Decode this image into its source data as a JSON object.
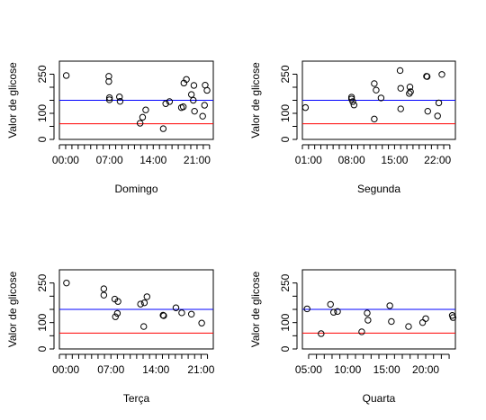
{
  "chart_data": [
    {
      "type": "scatter",
      "xlabel": "Domingo",
      "ylabel": "Valor de glicose",
      "xlim": [
        -1,
        23.6
      ],
      "ylim": [
        0,
        300
      ],
      "xticks": [
        0,
        7,
        14,
        21
      ],
      "xtick_labels": [
        "00:00",
        "07:00",
        "14:00",
        "21:00"
      ],
      "yticks": [
        0,
        100,
        250
      ],
      "ytick_labels": [
        "0",
        "100",
        "250"
      ],
      "hlines": [
        {
          "y": 150,
          "color": "#0000ff"
        },
        {
          "y": 60,
          "color": "#ff0000"
        }
      ],
      "points": [
        [
          0.1,
          245
        ],
        [
          6.9,
          242
        ],
        [
          6.9,
          222
        ],
        [
          7.0,
          160
        ],
        [
          7.0,
          152
        ],
        [
          8.6,
          163
        ],
        [
          8.7,
          146
        ],
        [
          11.9,
          62
        ],
        [
          12.3,
          85
        ],
        [
          12.8,
          113
        ],
        [
          15.6,
          41
        ],
        [
          16.0,
          137
        ],
        [
          16.6,
          145
        ],
        [
          18.5,
          122
        ],
        [
          18.8,
          125
        ],
        [
          18.9,
          216
        ],
        [
          19.3,
          230
        ],
        [
          20.1,
          172
        ],
        [
          20.4,
          150
        ],
        [
          20.5,
          207
        ],
        [
          20.6,
          108
        ],
        [
          21.9,
          89
        ],
        [
          22.2,
          131
        ],
        [
          22.3,
          208
        ],
        [
          22.6,
          188
        ]
      ]
    },
    {
      "type": "scatter",
      "xlabel": "Segunda",
      "ylabel": "Valor de glicose",
      "xlim": [
        0,
        24.9
      ],
      "ylim": [
        0,
        300
      ],
      "xticks": [
        1,
        8,
        15,
        22
      ],
      "xtick_labels": [
        "01:00",
        "08:00",
        "15:00",
        "22:00"
      ],
      "yticks": [
        0,
        100,
        250
      ],
      "ytick_labels": [
        "0",
        "100",
        "250"
      ],
      "hlines": [
        {
          "y": 150,
          "color": "#0000ff"
        },
        {
          "y": 60,
          "color": "#ff0000"
        }
      ],
      "points": [
        [
          0.5,
          122
        ],
        [
          8.0,
          162
        ],
        [
          8.0,
          155
        ],
        [
          8.2,
          145
        ],
        [
          8.4,
          132
        ],
        [
          11.7,
          78
        ],
        [
          11.7,
          214
        ],
        [
          12.0,
          189
        ],
        [
          12.8,
          159
        ],
        [
          15.9,
          264
        ],
        [
          16.0,
          117
        ],
        [
          16.0,
          196
        ],
        [
          17.4,
          176
        ],
        [
          17.5,
          201
        ],
        [
          17.6,
          183
        ],
        [
          20.2,
          242
        ],
        [
          20.3,
          241
        ],
        [
          20.4,
          108
        ],
        [
          22.0,
          90
        ],
        [
          22.2,
          140
        ],
        [
          22.7,
          249
        ]
      ]
    },
    {
      "type": "scatter",
      "xlabel": "Terça",
      "ylabel": "Valor de glicose",
      "xlim": [
        -1,
        22.9
      ],
      "ylim": [
        0,
        300
      ],
      "xticks": [
        0,
        7,
        14,
        21
      ],
      "xtick_labels": [
        "00:00",
        "07:00",
        "14:00",
        "21:00"
      ],
      "yticks": [
        0,
        100,
        250
      ],
      "ytick_labels": [
        "0",
        "100",
        "250"
      ],
      "hlines": [
        {
          "y": 150,
          "color": "#0000ff"
        },
        {
          "y": 60,
          "color": "#ff0000"
        }
      ],
      "points": [
        [
          0.1,
          250
        ],
        [
          5.9,
          228
        ],
        [
          5.9,
          204
        ],
        [
          7.6,
          189
        ],
        [
          7.7,
          122
        ],
        [
          8.0,
          135
        ],
        [
          8.1,
          180
        ],
        [
          11.6,
          170
        ],
        [
          12.1,
          85
        ],
        [
          12.2,
          175
        ],
        [
          12.6,
          198
        ],
        [
          15.1,
          128
        ],
        [
          15.2,
          126
        ],
        [
          17.1,
          156
        ],
        [
          18.0,
          137
        ],
        [
          19.5,
          132
        ],
        [
          21.1,
          98
        ]
      ]
    },
    {
      "type": "scatter",
      "xlabel": "Quarta",
      "ylabel": "Valor de glicose",
      "xlim": [
        4.2,
        23.8
      ],
      "ylim": [
        0,
        300
      ],
      "xticks": [
        5,
        10,
        15,
        20
      ],
      "xtick_labels": [
        "05:00",
        "10:00",
        "15:00",
        "20:00"
      ],
      "yticks": [
        0,
        100,
        250
      ],
      "ytick_labels": [
        "0",
        "100",
        "250"
      ],
      "hlines": [
        {
          "y": 150,
          "color": "#0000ff"
        },
        {
          "y": 60,
          "color": "#ff0000"
        }
      ],
      "points": [
        [
          4.8,
          152
        ],
        [
          6.6,
          58
        ],
        [
          7.8,
          169
        ],
        [
          8.2,
          139
        ],
        [
          8.7,
          142
        ],
        [
          11.8,
          65
        ],
        [
          12.5,
          136
        ],
        [
          12.6,
          109
        ],
        [
          15.4,
          164
        ],
        [
          15.6,
          104
        ],
        [
          17.8,
          85
        ],
        [
          19.6,
          100
        ],
        [
          20.0,
          115
        ],
        [
          23.4,
          127
        ],
        [
          23.5,
          119
        ]
      ]
    }
  ]
}
